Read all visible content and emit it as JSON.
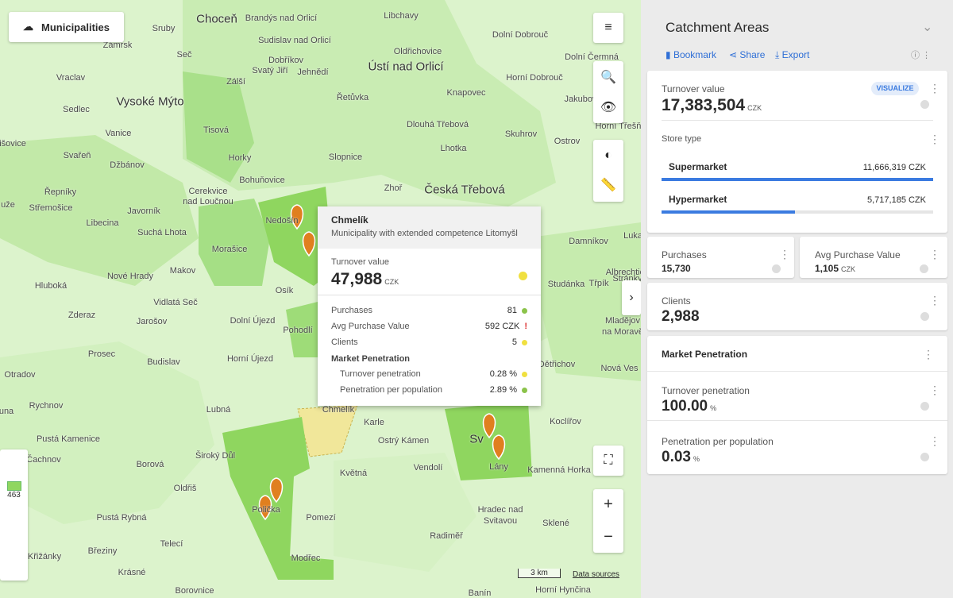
{
  "map": {
    "layer_button": "Municipalities",
    "legend_value": "463",
    "scale": "3 km",
    "data_sources": "Data sources",
    "places": [
      "Choceň",
      "Ústí nad Orlicí",
      "Vysoké Mýto",
      "Česká Třebová",
      "Brandýs nad Orlicí",
      "Libchavy",
      "Sruby",
      "Sudislav nad Orlicí",
      "Oldřichovice",
      "Dolní Dobrouč",
      "Zámrsk",
      "Seč",
      "Dolní Čermná",
      "Dobříkov",
      "Svatý Jiří",
      "Jehnědí",
      "Horní Dobrouč",
      "Vraclav",
      "Zálší",
      "Řetůvka",
      "Knapovec",
      "Jakubov",
      "Sedlec",
      "Tisová",
      "Dlouhá Třebová",
      "Horní Třešňovec",
      "Vanice",
      "Skuhrov",
      "Ostrov",
      "Svařeň",
      "Horky",
      "Lhotka",
      "Džbánov",
      "Slopnice",
      "Bohuňovice",
      "Zhoř",
      "Řepníky",
      "Cerekvice",
      "nad Loučnou",
      "Střemošice",
      "Javorník",
      "Nedošín",
      "Suchá Lhota",
      "Libecina",
      "Damníkov",
      "Morašice",
      "Makov",
      "Nové Hrady",
      "Osík",
      "Hluboká",
      "Vidlatá Seč",
      "Zderaz",
      "Jarošov",
      "Dolní Újezd",
      "Prosec",
      "Budislav",
      "Horní Újezd",
      "Třpík",
      "Mladějov",
      "na Moravě",
      "Dětřichov",
      "Nová Ves",
      "Otradov",
      "Rychnov",
      "Lubná",
      "Chmelík",
      "Karle",
      "Ostrý Kámen",
      "Koclířov",
      "Pustá Kamenice",
      "Čachnov",
      "Široký Důl",
      "Borová",
      "Květná",
      "Vendolí",
      "Kamenná Horka",
      "Oldřiš",
      "Pomezí",
      "Hradec nad",
      "Svitavou",
      "Pustá Rybná",
      "Telecí",
      "Radiměř",
      "Sklené",
      "Březiny",
      "Křižánky",
      "Krásné",
      "Borovnice",
      "Banín",
      "Horní Hynčina",
      "išovice",
      "uže",
      "una",
      "Lány",
      "Polička",
      "Modřec",
      "Pohodlí",
      "Luka",
      "Albrechtice",
      "Stránky",
      "Studánka",
      "Sv"
    ]
  },
  "tooltip": {
    "title": "Chmelík",
    "subtitle": "Municipality with extended competence Litomyšl",
    "metric_label": "Turnover value",
    "metric_value": "47,988",
    "metric_unit": "CZK",
    "rows": [
      {
        "label": "Purchases",
        "value": "81"
      },
      {
        "label": "Avg Purchase Value",
        "value": "592 CZK"
      },
      {
        "label": "Clients",
        "value": "5"
      }
    ],
    "section": "Market Penetration",
    "sub_rows": [
      {
        "label": "Turnover penetration",
        "value": "0.28 %"
      },
      {
        "label": "Penetration per population",
        "value": "2.89 %"
      }
    ]
  },
  "panel": {
    "title": "Catchment Areas",
    "actions": [
      "Bookmark",
      "Share",
      "Export"
    ],
    "turnover": {
      "label": "Turnover value",
      "value": "17,383,504",
      "unit": "CZK",
      "button": "VISUALIZE"
    },
    "store_type": {
      "title": "Store type",
      "items": [
        {
          "name": "Supermarket",
          "value": 11666319,
          "value_label": "11,666,319 CZK"
        },
        {
          "name": "Hypermarket",
          "value": 5717185,
          "value_label": "5,717,185 CZK"
        }
      ]
    },
    "purchases": {
      "label": "Purchases",
      "value": "15,730"
    },
    "avg_purchase": {
      "label": "Avg Purchase Value",
      "value": "1,105",
      "unit": "CZK"
    },
    "clients": {
      "label": "Clients",
      "value": "2,988"
    },
    "market_penetration": {
      "title": "Market Penetration",
      "items": [
        {
          "label": "Turnover penetration",
          "value": "100.00",
          "unit": "%"
        },
        {
          "label": "Penetration per population",
          "value": "0.03",
          "unit": "%"
        }
      ]
    }
  }
}
